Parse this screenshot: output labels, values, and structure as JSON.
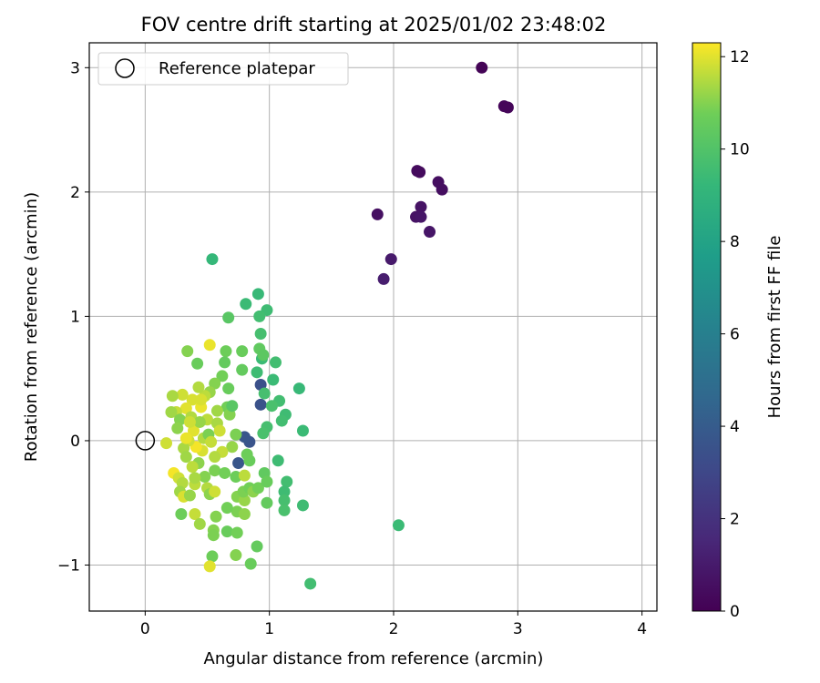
{
  "chart_data": {
    "type": "scatter",
    "title": "FOV centre drift starting at 2025/01/02 23:48:02",
    "xlabel": "Angular distance from reference (arcmin)",
    "ylabel": "Rotation from reference (arcmin)",
    "xlim": [
      -0.45,
      4.12
    ],
    "ylim": [
      -1.37,
      3.2
    ],
    "xticks": [
      0,
      1,
      2,
      3,
      4
    ],
    "yticks": [
      -1,
      0,
      1,
      2,
      3
    ],
    "grid": true,
    "legend": {
      "placement": "top-left",
      "entries": [
        "Reference platepar"
      ]
    },
    "reference_point": {
      "label": "Reference platepar",
      "x": 0,
      "y": 0
    },
    "colorbar": {
      "label": "Hours from first FF file",
      "colormap": "viridis",
      "range": [
        0,
        12.3
      ],
      "ticks": [
        0,
        2,
        4,
        6,
        8,
        10,
        12
      ]
    },
    "points": [
      {
        "x": 2.71,
        "y": 3.0,
        "c": 0.1
      },
      {
        "x": 2.89,
        "y": 2.69,
        "c": 0.2
      },
      {
        "x": 2.92,
        "y": 2.68,
        "c": 0.2
      },
      {
        "x": 2.19,
        "y": 2.17,
        "c": 0.4
      },
      {
        "x": 2.21,
        "y": 2.16,
        "c": 0.4
      },
      {
        "x": 2.36,
        "y": 2.08,
        "c": 0.5
      },
      {
        "x": 2.39,
        "y": 2.02,
        "c": 0.5
      },
      {
        "x": 1.87,
        "y": 1.82,
        "c": 0.6
      },
      {
        "x": 2.18,
        "y": 1.8,
        "c": 0.7
      },
      {
        "x": 2.22,
        "y": 1.88,
        "c": 0.7
      },
      {
        "x": 2.22,
        "y": 1.8,
        "c": 0.8
      },
      {
        "x": 2.29,
        "y": 1.68,
        "c": 0.8
      },
      {
        "x": 1.98,
        "y": 1.46,
        "c": 1.0
      },
      {
        "x": 1.92,
        "y": 1.3,
        "c": 1.1
      },
      {
        "x": 0.93,
        "y": 0.45,
        "c": 3.4
      },
      {
        "x": 0.93,
        "y": 0.29,
        "c": 3.5
      },
      {
        "x": 0.84,
        "y": -0.01,
        "c": 3.6
      },
      {
        "x": 0.8,
        "y": 0.03,
        "c": 3.7
      },
      {
        "x": 0.75,
        "y": -0.18,
        "c": 3.7
      },
      {
        "x": 0.54,
        "y": 1.46,
        "c": 9.2
      },
      {
        "x": 0.91,
        "y": 1.18,
        "c": 9.3
      },
      {
        "x": 0.81,
        "y": 1.1,
        "c": 9.4
      },
      {
        "x": 0.98,
        "y": 1.05,
        "c": 9.5
      },
      {
        "x": 0.92,
        "y": 1.0,
        "c": 9.6
      },
      {
        "x": 0.93,
        "y": 0.86,
        "c": 9.7
      },
      {
        "x": 0.94,
        "y": 0.66,
        "c": 9.4
      },
      {
        "x": 1.05,
        "y": 0.63,
        "c": 9.6
      },
      {
        "x": 0.9,
        "y": 0.55,
        "c": 9.5
      },
      {
        "x": 1.03,
        "y": 0.49,
        "c": 9.4
      },
      {
        "x": 1.24,
        "y": 0.42,
        "c": 9.3
      },
      {
        "x": 0.96,
        "y": 0.38,
        "c": 9.7
      },
      {
        "x": 1.08,
        "y": 0.32,
        "c": 9.6
      },
      {
        "x": 1.02,
        "y": 0.28,
        "c": 9.8
      },
      {
        "x": 1.13,
        "y": 0.21,
        "c": 9.5
      },
      {
        "x": 1.1,
        "y": 0.16,
        "c": 9.6
      },
      {
        "x": 0.98,
        "y": 0.11,
        "c": 9.7
      },
      {
        "x": 0.95,
        "y": 0.06,
        "c": 9.8
      },
      {
        "x": 1.27,
        "y": 0.08,
        "c": 9.4
      },
      {
        "x": 1.07,
        "y": -0.16,
        "c": 9.5
      },
      {
        "x": 1.14,
        "y": -0.33,
        "c": 9.6
      },
      {
        "x": 1.12,
        "y": -0.41,
        "c": 9.5
      },
      {
        "x": 1.12,
        "y": -0.48,
        "c": 9.7
      },
      {
        "x": 1.12,
        "y": -0.56,
        "c": 9.8
      },
      {
        "x": 1.27,
        "y": -0.52,
        "c": 9.5
      },
      {
        "x": 2.04,
        "y": -0.68,
        "c": 9.4
      },
      {
        "x": 1.33,
        "y": -1.15,
        "c": 9.6
      },
      {
        "x": 0.67,
        "y": 0.99,
        "c": 10.2
      },
      {
        "x": 0.92,
        "y": 0.74,
        "c": 10.4
      },
      {
        "x": 0.95,
        "y": 0.69,
        "c": 10.3
      },
      {
        "x": 0.78,
        "y": 0.72,
        "c": 10.6
      },
      {
        "x": 0.65,
        "y": 0.72,
        "c": 10.7
      },
      {
        "x": 0.64,
        "y": 0.63,
        "c": 10.5
      },
      {
        "x": 0.78,
        "y": 0.57,
        "c": 10.5
      },
      {
        "x": 0.62,
        "y": 0.52,
        "c": 10.8
      },
      {
        "x": 0.56,
        "y": 0.46,
        "c": 11.0
      },
      {
        "x": 0.67,
        "y": 0.42,
        "c": 10.6
      },
      {
        "x": 0.52,
        "y": 0.39,
        "c": 11.2
      },
      {
        "x": 0.48,
        "y": 0.36,
        "c": 11.6
      },
      {
        "x": 0.43,
        "y": 0.43,
        "c": 11.5
      },
      {
        "x": 0.38,
        "y": 0.33,
        "c": 11.9
      },
      {
        "x": 0.33,
        "y": 0.26,
        "c": 12.0
      },
      {
        "x": 0.3,
        "y": 0.37,
        "c": 11.8
      },
      {
        "x": 0.22,
        "y": 0.36,
        "c": 11.4
      },
      {
        "x": 0.25,
        "y": 0.23,
        "c": 11.7
      },
      {
        "x": 0.21,
        "y": 0.23,
        "c": 11.3
      },
      {
        "x": 0.28,
        "y": 0.17,
        "c": 11.0
      },
      {
        "x": 0.37,
        "y": 0.19,
        "c": 11.5
      },
      {
        "x": 0.45,
        "y": 0.27,
        "c": 12.1
      },
      {
        "x": 0.5,
        "y": 0.17,
        "c": 11.6
      },
      {
        "x": 0.58,
        "y": 0.14,
        "c": 11.4
      },
      {
        "x": 0.6,
        "y": 0.08,
        "c": 11.8
      },
      {
        "x": 0.66,
        "y": 0.27,
        "c": 10.8
      },
      {
        "x": 0.68,
        "y": 0.21,
        "c": 11.0
      },
      {
        "x": 0.73,
        "y": 0.05,
        "c": 10.9
      },
      {
        "x": 0.7,
        "y": -0.05,
        "c": 11.2
      },
      {
        "x": 0.62,
        "y": -0.09,
        "c": 11.7
      },
      {
        "x": 0.56,
        "y": -0.13,
        "c": 11.5
      },
      {
        "x": 0.46,
        "y": -0.08,
        "c": 11.9
      },
      {
        "x": 0.41,
        "y": -0.05,
        "c": 12.2
      },
      {
        "x": 0.35,
        "y": 0.0,
        "c": 11.8
      },
      {
        "x": 0.31,
        "y": -0.06,
        "c": 11.4
      },
      {
        "x": 0.26,
        "y": 0.1,
        "c": 11.1
      },
      {
        "x": 0.17,
        "y": -0.02,
        "c": 11.8
      },
      {
        "x": 0.39,
        "y": 0.08,
        "c": 12.0
      },
      {
        "x": 0.44,
        "y": 0.15,
        "c": 11.2
      },
      {
        "x": 0.47,
        "y": 0.02,
        "c": 11.5
      },
      {
        "x": 0.51,
        "y": 0.05,
        "c": 10.9
      },
      {
        "x": 0.53,
        "y": -0.01,
        "c": 11.7
      },
      {
        "x": 0.43,
        "y": -0.18,
        "c": 11.1
      },
      {
        "x": 0.38,
        "y": -0.21,
        "c": 11.6
      },
      {
        "x": 0.33,
        "y": -0.13,
        "c": 11.3
      },
      {
        "x": 0.23,
        "y": -0.26,
        "c": 12.2
      },
      {
        "x": 0.27,
        "y": -0.3,
        "c": 11.8
      },
      {
        "x": 0.3,
        "y": -0.34,
        "c": 11.5
      },
      {
        "x": 0.28,
        "y": -0.41,
        "c": 11.3
      },
      {
        "x": 0.31,
        "y": -0.45,
        "c": 11.9
      },
      {
        "x": 0.36,
        "y": -0.44,
        "c": 11.2
      },
      {
        "x": 0.4,
        "y": -0.35,
        "c": 11.6
      },
      {
        "x": 0.48,
        "y": -0.29,
        "c": 11.0
      },
      {
        "x": 0.56,
        "y": -0.24,
        "c": 10.9
      },
      {
        "x": 0.5,
        "y": -0.38,
        "c": 11.5
      },
      {
        "x": 0.52,
        "y": -0.43,
        "c": 11.1
      },
      {
        "x": 0.56,
        "y": -0.41,
        "c": 11.8
      },
      {
        "x": 0.64,
        "y": -0.26,
        "c": 10.8
      },
      {
        "x": 0.73,
        "y": -0.29,
        "c": 10.7
      },
      {
        "x": 0.8,
        "y": -0.28,
        "c": 11.6
      },
      {
        "x": 0.84,
        "y": -0.16,
        "c": 10.6
      },
      {
        "x": 0.82,
        "y": -0.11,
        "c": 10.7
      },
      {
        "x": 0.74,
        "y": -0.45,
        "c": 11.0
      },
      {
        "x": 0.8,
        "y": -0.48,
        "c": 11.2
      },
      {
        "x": 0.79,
        "y": -0.41,
        "c": 10.9
      },
      {
        "x": 0.84,
        "y": -0.38,
        "c": 10.8
      },
      {
        "x": 0.87,
        "y": -0.41,
        "c": 11.1
      },
      {
        "x": 0.91,
        "y": -0.38,
        "c": 10.8
      },
      {
        "x": 0.96,
        "y": -0.26,
        "c": 10.4
      },
      {
        "x": 0.98,
        "y": -0.33,
        "c": 10.6
      },
      {
        "x": 0.98,
        "y": -0.5,
        "c": 10.5
      },
      {
        "x": 0.74,
        "y": -0.57,
        "c": 10.9
      },
      {
        "x": 0.8,
        "y": -0.59,
        "c": 11.1
      },
      {
        "x": 0.66,
        "y": -0.54,
        "c": 10.8
      },
      {
        "x": 0.57,
        "y": -0.61,
        "c": 11.0
      },
      {
        "x": 0.4,
        "y": -0.59,
        "c": 11.7
      },
      {
        "x": 0.44,
        "y": -0.67,
        "c": 11.3
      },
      {
        "x": 0.29,
        "y": -0.59,
        "c": 10.7
      },
      {
        "x": 0.55,
        "y": -0.72,
        "c": 11.0
      },
      {
        "x": 0.55,
        "y": -0.76,
        "c": 10.9
      },
      {
        "x": 0.66,
        "y": -0.73,
        "c": 10.6
      },
      {
        "x": 0.74,
        "y": -0.74,
        "c": 10.8
      },
      {
        "x": 0.9,
        "y": -0.85,
        "c": 10.5
      },
      {
        "x": 0.73,
        "y": -0.92,
        "c": 11.0
      },
      {
        "x": 0.54,
        "y": -0.93,
        "c": 10.7
      },
      {
        "x": 0.85,
        "y": -0.99,
        "c": 10.6
      },
      {
        "x": 0.52,
        "y": -1.01,
        "c": 12.0
      },
      {
        "x": 0.34,
        "y": 0.72,
        "c": 11.0
      },
      {
        "x": 0.52,
        "y": 0.77,
        "c": 12.1
      },
      {
        "x": 0.42,
        "y": 0.62,
        "c": 10.6
      },
      {
        "x": 0.7,
        "y": 0.28,
        "c": 10.2
      },
      {
        "x": 0.45,
        "y": 0.33,
        "c": 11.9
      },
      {
        "x": 0.36,
        "y": 0.15,
        "c": 11.8
      },
      {
        "x": 0.4,
        "y": -0.3,
        "c": 11.4
      },
      {
        "x": 0.33,
        "y": 0.02,
        "c": 12.1
      },
      {
        "x": 0.58,
        "y": 0.24,
        "c": 11.3
      }
    ]
  }
}
